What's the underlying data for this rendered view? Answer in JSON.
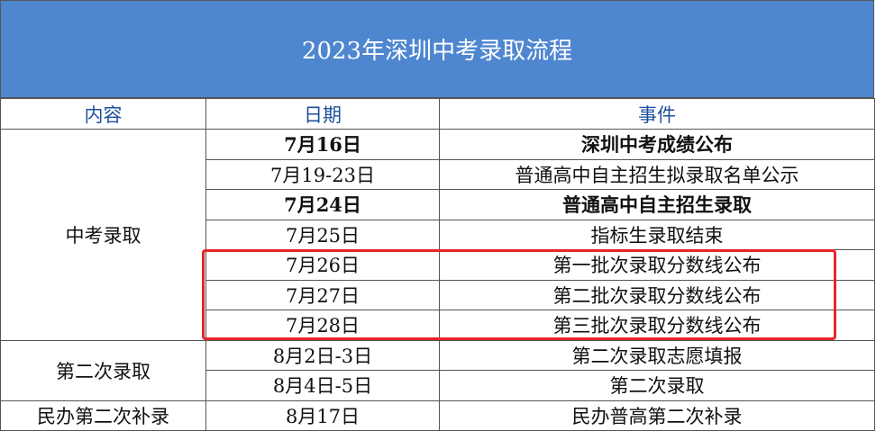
{
  "title": "2023年深圳中考录取流程",
  "table": {
    "headers": [
      "内容",
      "日期",
      "事件"
    ],
    "groups": [
      {
        "label": "中考录取",
        "rows": [
          {
            "date": "7月16日",
            "event": "深圳中考成绩公布",
            "bold": true
          },
          {
            "date": "7月19-23日",
            "event": "普通高中自主招生拟录取名单公示",
            "bold": false
          },
          {
            "date": "7月24日",
            "event": "普通高中自主招生录取",
            "bold": true
          },
          {
            "date": "7月25日",
            "event": "指标生录取结束",
            "bold": false
          },
          {
            "date": "7月26日",
            "event": "第一批次录取分数线公布",
            "bold": false
          },
          {
            "date": "7月27日",
            "event": "第二批次录取分数线公布",
            "bold": false
          },
          {
            "date": "7月28日",
            "event": "第三批次录取分数线公布",
            "bold": false
          }
        ]
      },
      {
        "label": "第二次录取",
        "rows": [
          {
            "date": "8月2日-3日",
            "event": "第二次录取志愿填报",
            "bold": false
          },
          {
            "date": "8月4日-5日",
            "event": "第二次录取",
            "bold": false
          }
        ]
      },
      {
        "label": "民办第二次补录",
        "rows": [
          {
            "date": "8月17日",
            "event": "民办普高第二次补录",
            "bold": false
          }
        ]
      }
    ]
  }
}
